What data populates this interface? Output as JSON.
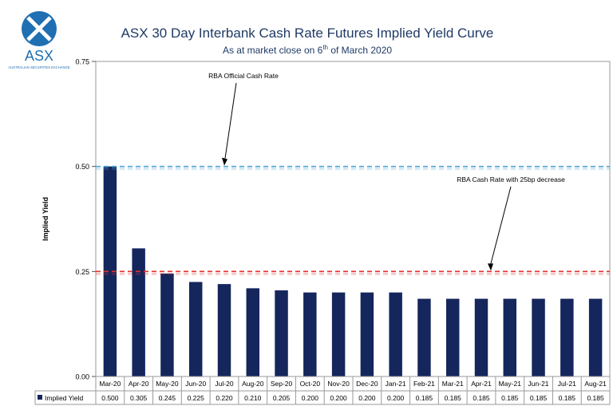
{
  "logo": {
    "text": "ASX",
    "tagline": "AUSTRALIAN SECURITIES EXCHANGE",
    "color": "#1f6fb2"
  },
  "header": {
    "title": "ASX 30 Day Interbank Cash Rate Futures Implied Yield Curve",
    "subtitle_prefix": "As at market close on 6",
    "subtitle_sup": "th",
    "subtitle_suffix": " of March 2020"
  },
  "chart_data": {
    "type": "bar",
    "ylabel": "Implied Yield",
    "ylim": [
      0,
      0.75
    ],
    "yticks": [
      0,
      0.25,
      0.5,
      0.75
    ],
    "ytick_labels": [
      "0.00",
      "0.25",
      "0.50",
      "0.75"
    ],
    "categories": [
      "Mar-20",
      "Apr-20",
      "May-20",
      "Jun-20",
      "Jul-20",
      "Aug-20",
      "Sep-20",
      "Oct-20",
      "Nov-20",
      "Dec-20",
      "Jan-21",
      "Feb-21",
      "Mar-21",
      "Apr-21",
      "May-21",
      "Jun-21",
      "Jul-21",
      "Aug-21"
    ],
    "series": [
      {
        "name": "Implied Yield",
        "values": [
          0.5,
          0.305,
          0.245,
          0.225,
          0.22,
          0.21,
          0.205,
          0.2,
          0.2,
          0.2,
          0.2,
          0.185,
          0.185,
          0.185,
          0.185,
          0.185,
          0.185,
          0.185
        ],
        "value_labels": [
          "0.500",
          "0.305",
          "0.245",
          "0.225",
          "0.220",
          "0.210",
          "0.205",
          "0.200",
          "0.200",
          "0.200",
          "0.200",
          "0.185",
          "0.185",
          "0.185",
          "0.185",
          "0.185",
          "0.185",
          "0.185"
        ],
        "color": "#14265c"
      }
    ],
    "reference_lines": [
      {
        "value": 0.5,
        "color": "#4da6d9",
        "style": "dashed"
      },
      {
        "value": 0.25,
        "color": "#e03030",
        "style": "dashed"
      }
    ],
    "annotations": [
      {
        "text": "RBA Official Cash Rate",
        "points_to": {
          "category": "Jul-20",
          "value": 0.5
        }
      },
      {
        "text": "RBA Cash Rate with 25bp decrease",
        "points_to": {
          "category": "Apr-21",
          "value": 0.25
        }
      }
    ],
    "data_table": true,
    "grid": false
  }
}
